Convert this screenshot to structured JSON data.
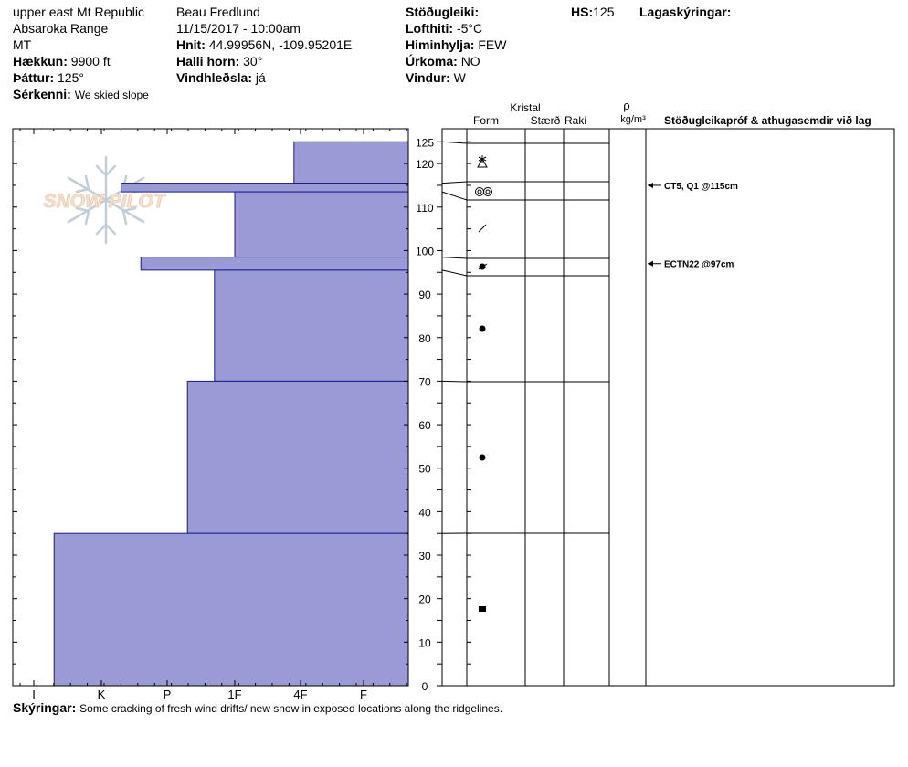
{
  "header": {
    "location": "upper east Mt Republic",
    "range": "Absaroka Range",
    "state": "MT",
    "elevation_label": "Hækkun:",
    "elevation": "9900 ft",
    "aspect_label": "Þáttur:",
    "aspect": "125°",
    "feature_label": "Sérkenni:",
    "feature": "We skied slope",
    "observer": "Beau  Fredlund",
    "datetime": "11/15/2017 - 10:00am",
    "coords_label": "Hnit:",
    "coords": "44.99956N, -109.95201E",
    "slope_label": "Halli horn:",
    "slope": "30°",
    "wind_loading_label": "Vindhleðsla:",
    "wind_loading": "já",
    "stability_label": "Stöðugleiki:",
    "stability": "",
    "air_temp_label": "Lofthiti:",
    "air_temp": "-5°C",
    "sky_label": "Himinhylja:",
    "sky": "FEW",
    "precip_label": "Úrkoma:",
    "precip": "NO",
    "wind_label": "Vindur:",
    "wind": "W",
    "hs_label": "HS:",
    "hs": "125",
    "layer_notes_label": "Lagaskýringar:",
    "layer_notes": "",
    "notes_label": "Skýringar:",
    "notes": "Some cracking of fresh wind drifts/ new snow in exposed locations along the ridgelines."
  },
  "logo": {
    "text": "SNOW PILOT"
  },
  "columns": {
    "crystal": "Kristal",
    "form": "Form",
    "size": "Stærð",
    "moisture": "Raki",
    "rho": "ρ",
    "density_unit": "kg/m³",
    "tests": "Stöðugleikapróf & athugasemdir við lag"
  },
  "colors": {
    "hardness_fill": "#9a9ad6",
    "hardness_stroke": "#1a1a8c"
  },
  "chart_data": {
    "type": "bar",
    "orientation": "horizontal-profile",
    "y_ticks": [
      0,
      10,
      20,
      30,
      40,
      50,
      60,
      70,
      80,
      90,
      100,
      110,
      120,
      125
    ],
    "ylim": [
      0,
      125
    ],
    "hardness_categories": [
      "I",
      "K",
      "P",
      "1F",
      "4F",
      "F"
    ],
    "layers": [
      {
        "top": 125,
        "bottom": 115.5,
        "hardness": 1.1,
        "form": "snowflake",
        "form_y": 120.5
      },
      {
        "top": 115.5,
        "bottom": 113.5,
        "hardness": 3.7,
        "form": "surface-hoar",
        "form_y": 114.5
      },
      {
        "top": 113.5,
        "bottom": 98.5,
        "hardness": 2.0,
        "form": "decomposing",
        "form_y": 105
      },
      {
        "top": 98.5,
        "bottom": 95.5,
        "hardness": 3.4,
        "form": "rounded-faceted",
        "form_y": 96.5
      },
      {
        "top": 95.5,
        "bottom": 70,
        "hardness": 2.3,
        "form": "rounded",
        "form_y": 82
      },
      {
        "top": 70,
        "bottom": 35,
        "hardness": 2.7,
        "form": "rounded",
        "form_y": 52.5
      },
      {
        "top": 35,
        "bottom": 0,
        "hardness": 4.7,
        "form": "faceted",
        "form_y": 17.5
      }
    ],
    "tests": [
      {
        "label": "CT5, Q1 @115cm",
        "depth": 115
      },
      {
        "label": "ECTN22 @97cm",
        "depth": 97
      }
    ]
  }
}
